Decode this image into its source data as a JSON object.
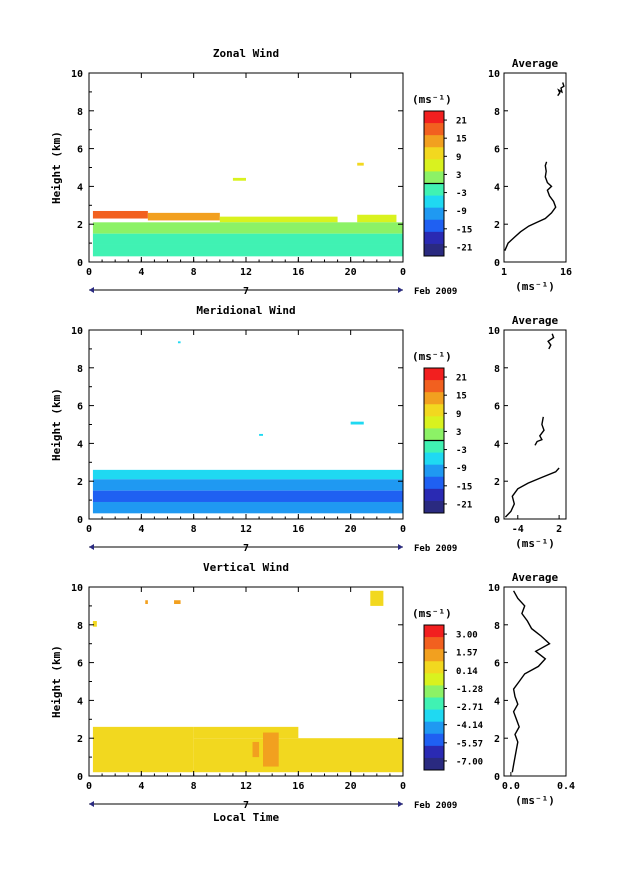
{
  "figure": {
    "colorbar_unit": "(ms⁻¹)",
    "avg_title": "Average",
    "date_label": "Feb 2009",
    "day_label": "7",
    "xlabel": "Local Time"
  },
  "chart_data": [
    {
      "type": "heatmap",
      "title": "Zonal Wind",
      "ylabel": "Height (km)",
      "xlim": [
        0,
        24
      ],
      "ylim": [
        0,
        10
      ],
      "xticks": [
        "0",
        "4",
        "8",
        "12",
        "16",
        "20",
        "0"
      ],
      "yticks": [
        "0",
        "2",
        "4",
        "6",
        "8",
        "10"
      ],
      "colorbar": {
        "ticks": [
          "21",
          "15",
          "9",
          "3",
          "-3",
          "-9",
          "-15",
          "-21"
        ],
        "range": [
          -24,
          24
        ]
      },
      "regions": [
        {
          "x": [
            0.3,
            4.5
          ],
          "y": [
            2.3,
            2.7
          ],
          "value": 19
        },
        {
          "x": [
            4.5,
            10
          ],
          "y": [
            2.2,
            2.6
          ],
          "value": 16
        },
        {
          "x": [
            10,
            19
          ],
          "y": [
            2.1,
            2.4
          ],
          "value": 8
        },
        {
          "x": [
            20.5,
            23.5
          ],
          "y": [
            2.1,
            2.5
          ],
          "value": 6
        },
        {
          "x": [
            0.3,
            24
          ],
          "y": [
            1.5,
            2.1
          ],
          "value": 4
        },
        {
          "x": [
            0.3,
            24
          ],
          "y": [
            0.9,
            1.5
          ],
          "value": 0
        },
        {
          "x": [
            0.3,
            24
          ],
          "y": [
            0.3,
            0.9
          ],
          "value": -1
        },
        {
          "x": [
            11,
            12
          ],
          "y": [
            4.3,
            4.45
          ],
          "value": 8
        },
        {
          "x": [
            20.5,
            21
          ],
          "y": [
            5.1,
            5.25
          ],
          "value": 10
        }
      ],
      "average": {
        "xlim": [
          1,
          16
        ],
        "xticks": [
          "1",
          "16"
        ],
        "xlabel": "(ms⁻¹)",
        "points": [
          [
            1.2,
            0.6
          ],
          [
            2,
            1
          ],
          [
            3.5,
            1.3
          ],
          [
            5,
            1.6
          ],
          [
            7,
            1.9
          ],
          [
            9,
            2.1
          ],
          [
            11,
            2.3
          ],
          [
            12.5,
            2.6
          ],
          [
            13.5,
            2.9
          ],
          [
            13,
            3.2
          ],
          [
            12,
            3.5
          ],
          [
            11.5,
            3.8
          ],
          [
            12.5,
            4.0
          ],
          [
            11.5,
            4.2
          ],
          [
            11,
            4.5
          ],
          [
            11.2,
            4.8
          ],
          [
            11,
            5.1
          ],
          [
            11.3,
            5.3
          ]
        ],
        "points2": [
          [
            14,
            8.8
          ],
          [
            14.5,
            8.95
          ],
          [
            14.2,
            9.1
          ],
          [
            15,
            9.0
          ],
          [
            14.8,
            9.2
          ],
          [
            15.5,
            9.3
          ],
          [
            15.2,
            9.5
          ]
        ]
      }
    },
    {
      "type": "heatmap",
      "title": "Meridional Wind",
      "ylabel": "Height (km)",
      "xlim": [
        0,
        24
      ],
      "ylim": [
        0,
        10
      ],
      "xticks": [
        "0",
        "4",
        "8",
        "12",
        "16",
        "20",
        "0"
      ],
      "yticks": [
        "0",
        "2",
        "4",
        "6",
        "8",
        "10"
      ],
      "colorbar": {
        "ticks": [
          "21",
          "15",
          "9",
          "3",
          "-3",
          "-9",
          "-15",
          "-21"
        ],
        "range": [
          -24,
          24
        ]
      },
      "regions": [
        {
          "x": [
            0.3,
            24
          ],
          "y": [
            2.1,
            2.6
          ],
          "value": -6
        },
        {
          "x": [
            0.3,
            24
          ],
          "y": [
            1.5,
            2.1
          ],
          "value": -9
        },
        {
          "x": [
            0.3,
            24
          ],
          "y": [
            0.9,
            1.5
          ],
          "value": -12
        },
        {
          "x": [
            0.3,
            24
          ],
          "y": [
            0.3,
            0.9
          ],
          "value": -10
        },
        {
          "x": [
            20,
            21
          ],
          "y": [
            5.0,
            5.15
          ],
          "value": -4
        },
        {
          "x": [
            13,
            13.3
          ],
          "y": [
            4.4,
            4.5
          ],
          "value": -5
        },
        {
          "x": [
            6.8,
            7
          ],
          "y": [
            9.3,
            9.4
          ],
          "value": -6
        }
      ],
      "average": {
        "xlim": [
          -6,
          3
        ],
        "xticks": [
          "-4",
          "2"
        ],
        "xlabel": "(ms⁻¹)",
        "points": [
          [
            -5.8,
            0.1
          ],
          [
            -5,
            0.4
          ],
          [
            -4.5,
            0.8
          ],
          [
            -4.8,
            1.2
          ],
          [
            -4,
            1.6
          ],
          [
            -2.5,
            1.9
          ],
          [
            -0.5,
            2.2
          ],
          [
            1.5,
            2.5
          ],
          [
            2,
            2.7
          ]
        ],
        "points2": [
          [
            -1.5,
            3.9
          ],
          [
            -1.2,
            4.1
          ],
          [
            -0.5,
            4.2
          ],
          [
            -0.8,
            4.4
          ],
          [
            -0.2,
            4.7
          ],
          [
            -0.5,
            5.0
          ],
          [
            -0.3,
            5.4
          ]
        ],
        "points3": [
          [
            0.5,
            9.0
          ],
          [
            0.8,
            9.2
          ],
          [
            0.4,
            9.4
          ],
          [
            1.2,
            9.6
          ],
          [
            1,
            9.8
          ]
        ]
      }
    },
    {
      "type": "heatmap",
      "title": "Vertical Wind",
      "ylabel": "Height (km)",
      "xlabel": "Local Time",
      "xlim": [
        0,
        24
      ],
      "ylim": [
        0,
        10
      ],
      "xticks": [
        "0",
        "4",
        "8",
        "12",
        "16",
        "20",
        "0"
      ],
      "yticks": [
        "0",
        "2",
        "4",
        "6",
        "8",
        "10"
      ],
      "colorbar": {
        "ticks": [
          "3.00",
          "1.57",
          "0.14",
          "-1.28",
          "-2.71",
          "-4.14",
          "-5.57",
          "-7.00"
        ],
        "range": [
          -7.7,
          3.7
        ]
      },
      "regions": [
        {
          "x": [
            0.3,
            8
          ],
          "y": [
            0.2,
            2.6
          ],
          "value": 0.5
        },
        {
          "x": [
            8,
            24
          ],
          "y": [
            0.2,
            2.0
          ],
          "value": 0.5
        },
        {
          "x": [
            8,
            16
          ],
          "y": [
            2.0,
            2.6
          ],
          "value": 0.5
        },
        {
          "x": [
            13.3,
            14.5
          ],
          "y": [
            0.5,
            2.3
          ],
          "value": 1.4
        },
        {
          "x": [
            12.5,
            13
          ],
          "y": [
            1.0,
            1.8
          ],
          "value": 1.2
        },
        {
          "x": [
            21.5,
            22.5
          ],
          "y": [
            9.0,
            9.8
          ],
          "value": 0.8
        },
        {
          "x": [
            4.3,
            4.5
          ],
          "y": [
            9.1,
            9.3
          ],
          "value": 0.9
        },
        {
          "x": [
            6.5,
            7
          ],
          "y": [
            9.1,
            9.3
          ],
          "value": 0.9
        },
        {
          "x": [
            0.3,
            0.6
          ],
          "y": [
            7.9,
            8.2
          ],
          "value": 0.8
        }
      ],
      "average": {
        "xlim": [
          -0.05,
          0.4
        ],
        "xticks": [
          "0.0",
          "0.4"
        ],
        "xlabel": "(ms⁻¹)",
        "points": [
          [
            0.01,
            0.2
          ],
          [
            0.02,
            0.6
          ],
          [
            0.03,
            1.0
          ],
          [
            0.04,
            1.4
          ],
          [
            0.05,
            1.8
          ],
          [
            0.03,
            2.2
          ],
          [
            0.06,
            2.6
          ],
          [
            0.04,
            3.0
          ],
          [
            0.02,
            3.4
          ],
          [
            0.05,
            3.8
          ],
          [
            0.03,
            4.2
          ],
          [
            0.02,
            4.6
          ],
          [
            0.06,
            5.0
          ],
          [
            0.1,
            5.4
          ],
          [
            0.2,
            5.8
          ],
          [
            0.25,
            6.2
          ],
          [
            0.18,
            6.6
          ],
          [
            0.28,
            7.0
          ],
          [
            0.22,
            7.4
          ],
          [
            0.15,
            7.8
          ],
          [
            0.12,
            8.2
          ],
          [
            0.08,
            8.6
          ],
          [
            0.1,
            9.0
          ],
          [
            0.05,
            9.4
          ],
          [
            0.02,
            9.8
          ]
        ]
      }
    }
  ]
}
